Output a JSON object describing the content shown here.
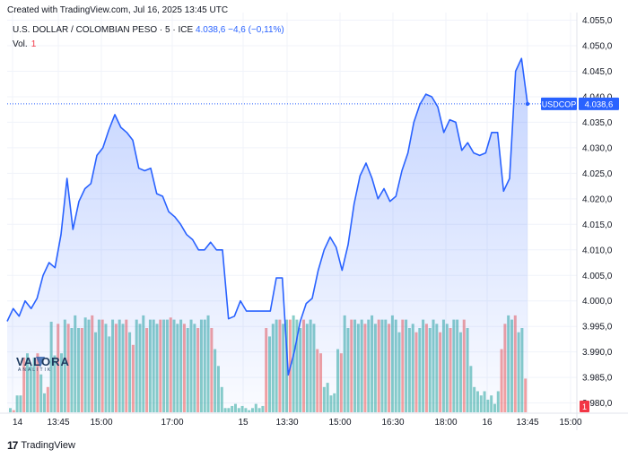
{
  "header": {
    "created_text": "Created with TradingView.com, Jul 16, 2025 13:45 UTC",
    "symbol_desc": "U.S. DOLLAR / COLOMBIAN PESO · 5 · ICE",
    "last_price": "4.038,6",
    "change": "−4,6 (−0,11%)",
    "vol_label": "Vol.",
    "vol_value": "1"
  },
  "price_label": {
    "symbol": "USDCOP",
    "value": "4.038,6"
  },
  "vol_badge": "1",
  "footer": {
    "brand": "TradingView"
  },
  "watermark": {
    "text": "VALORA",
    "sub": "ANALITIK"
  },
  "colors": {
    "line": "#2962ff",
    "vol_up": "#26a69a",
    "vol_down": "#ef5350",
    "grid": "#f0f3fa"
  },
  "chart_data": {
    "type": "area",
    "y_ticks": [
      "4.055,0",
      "4.050,0",
      "4.045,0",
      "4.040,0",
      "4.035,0",
      "4.030,0",
      "4.025,0",
      "4.020,0",
      "4.015,0",
      "4.010,0",
      "4.005,0",
      "4.000,0",
      "3.995,0",
      "3.990,0",
      "3.985,0",
      "3.980,0"
    ],
    "ylim": [
      3978,
      4056.5
    ],
    "x_ticks": [
      "14",
      "13:45",
      "15:00",
      "17:00",
      "15",
      "13:30",
      "15:00",
      "16:30",
      "18:00",
      "16",
      "13:45",
      "15:00"
    ],
    "series": [
      {
        "values": [
          3996.0,
          3998.5,
          3997.0,
          4000.0,
          3998.5,
          4000.5,
          4005.0,
          4007.5,
          4006.5,
          4013.0,
          4024.0,
          4014.0,
          4019.5,
          4022.0,
          4023.0,
          4028.5,
          4030.0,
          4033.5,
          4036.5,
          4034.0,
          4033.0,
          4031.5,
          4026.0,
          4025.5,
          4026.0,
          4021.0,
          4020.5,
          4017.5,
          4016.5,
          4015.0,
          4013.0,
          4012.0,
          4010.0,
          4010.0,
          4011.5,
          4010.0,
          4010.0,
          3996.5,
          3997.0,
          4000.0,
          3998.0,
          3998.0,
          3998.0,
          3998.0,
          3998.0,
          4004.5,
          4004.5,
          3985.5,
          3990.0,
          3996.0,
          3999.5,
          4000.5,
          4006.0,
          4010.0,
          4012.5,
          4010.5,
          4006.0,
          4011.0,
          4019.0,
          4024.5,
          4027.0,
          4024.0,
          4020.0,
          4022.0,
          4019.5,
          4020.5,
          4025.5,
          4029.0,
          4035.0,
          4038.5,
          4040.5,
          4040.0,
          4038.0,
          4033.0,
          4035.5,
          4035.0,
          4029.5,
          4031.0,
          4029.0,
          4028.5,
          4029.0,
          4033.0,
          4033.0,
          4021.5,
          4024.0,
          4045.0,
          4047.5,
          4038.6
        ]
      }
    ],
    "volume": {
      "values": [
        2,
        1,
        8,
        8,
        26,
        28,
        22,
        26,
        28,
        18,
        9,
        12,
        43,
        27,
        42,
        28,
        44,
        42,
        40,
        46,
        40,
        40,
        45,
        44,
        46,
        38,
        44,
        44,
        42,
        36,
        44,
        42,
        44,
        42,
        44,
        38,
        32,
        44,
        42,
        46,
        40,
        44,
        44,
        42,
        44,
        44,
        44,
        45,
        44,
        42,
        44,
        42,
        40,
        44,
        42,
        40,
        44,
        44,
        46,
        40,
        30,
        22,
        12,
        2,
        2,
        3,
        4,
        2,
        3,
        2,
        1,
        2,
        4,
        2,
        3,
        40,
        36,
        42,
        44,
        44,
        42,
        44,
        44,
        46,
        44,
        40,
        44,
        42,
        44,
        42,
        30,
        28,
        12,
        14,
        8,
        9,
        30,
        28,
        46,
        40,
        44,
        44,
        42,
        44,
        42,
        44,
        46,
        42,
        44,
        44,
        44,
        42,
        46,
        44,
        38,
        44,
        44,
        40,
        42,
        38,
        40,
        44,
        42,
        40,
        44,
        42,
        38,
        44,
        42,
        40,
        44,
        44,
        38,
        44,
        40,
        22,
        12,
        10,
        8,
        10,
        6,
        8,
        4,
        10,
        30,
        42,
        46,
        44,
        46,
        38,
        40,
        16
      ],
      "colors": [
        "u",
        "d",
        "u",
        "u",
        "d",
        "u",
        "u",
        "u",
        "d",
        "u",
        "u",
        "d",
        "u",
        "u",
        "d",
        "u",
        "u",
        "d",
        "u",
        "u",
        "u",
        "d",
        "u",
        "u",
        "d",
        "u",
        "u",
        "d",
        "u",
        "u",
        "u",
        "d",
        "u",
        "u",
        "d",
        "u",
        "d",
        "u",
        "u",
        "u",
        "d",
        "u",
        "u",
        "u",
        "d",
        "u",
        "u",
        "d",
        "u",
        "u",
        "u",
        "d",
        "u",
        "u",
        "u",
        "d",
        "u",
        "u",
        "u",
        "d",
        "u",
        "u",
        "u",
        "u",
        "u",
        "u",
        "u",
        "u",
        "u",
        "u",
        "u",
        "u",
        "u",
        "u",
        "u",
        "d",
        "u",
        "u",
        "u",
        "d",
        "u",
        "u",
        "d",
        "u",
        "u",
        "u",
        "d",
        "u",
        "u",
        "u",
        "d",
        "d",
        "u",
        "u",
        "u",
        "u",
        "u",
        "d",
        "u",
        "u",
        "d",
        "u",
        "u",
        "u",
        "d",
        "u",
        "u",
        "u",
        "d",
        "u",
        "u",
        "d",
        "u",
        "u",
        "u",
        "d",
        "u",
        "u",
        "u",
        "d",
        "u",
        "u",
        "d",
        "u",
        "u",
        "u",
        "d",
        "u",
        "u",
        "d",
        "u",
        "u",
        "u",
        "d",
        "u",
        "u",
        "u",
        "u",
        "u",
        "u",
        "u",
        "u",
        "u",
        "u",
        "d",
        "d",
        "u",
        "u",
        "d",
        "u",
        "u",
        "d"
      ]
    }
  }
}
